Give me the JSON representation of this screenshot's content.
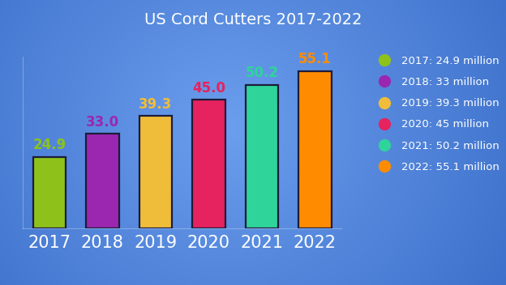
{
  "chart_data": {
    "type": "bar",
    "title": "US Cord Cutters 2017-2022",
    "categories": [
      "2017",
      "2018",
      "2019",
      "2020",
      "2021",
      "2022"
    ],
    "values": [
      24.9,
      33.0,
      39.3,
      45.0,
      50.2,
      55.1
    ],
    "value_labels": [
      "24.9",
      "33.0",
      "39.3",
      "45.0",
      "50.2",
      "55.1"
    ],
    "colors": [
      "#8ec21a",
      "#9b27b0",
      "#f0bd3a",
      "#e6225f",
      "#2fd49a",
      "#ff8c00"
    ],
    "data_labels": true,
    "tick_labels": "x",
    "grid": false,
    "ylim": [
      0,
      60
    ],
    "legend": "right",
    "legend_labels": [
      "2017: 24.9 million",
      "2018: 33 million",
      "2019: 39.3 million",
      "2020: 45 million",
      "2021: 50.2 million",
      "2022: 55.1 million"
    ]
  }
}
